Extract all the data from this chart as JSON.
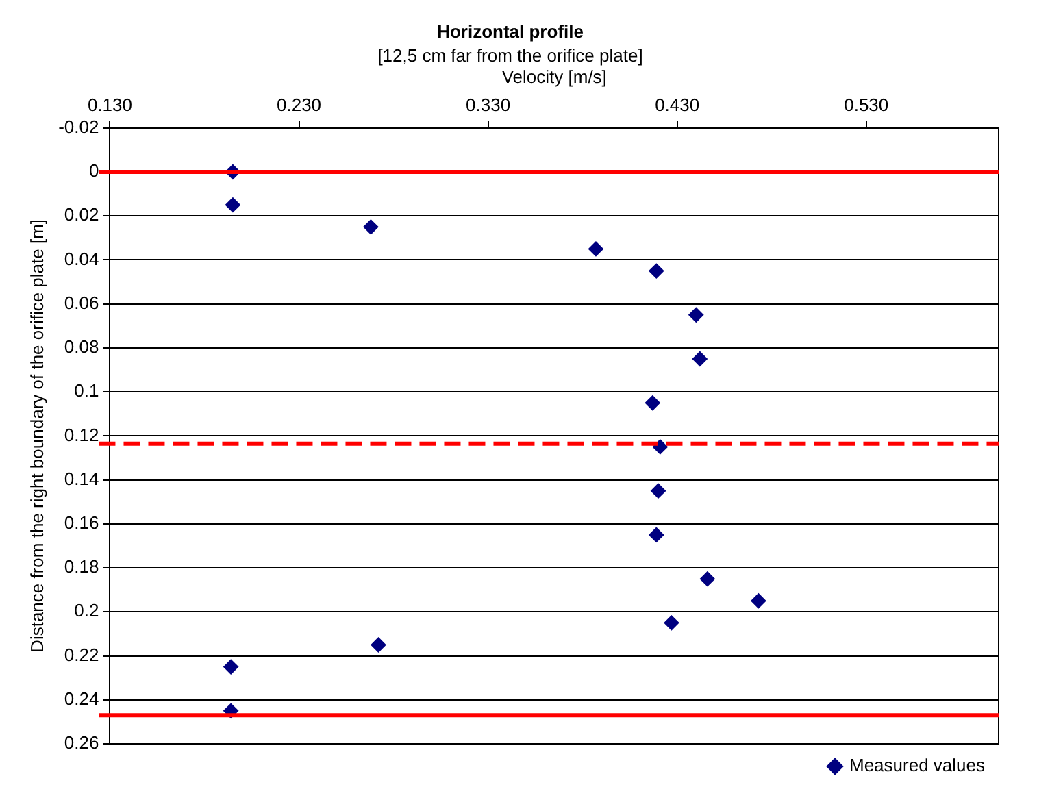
{
  "chart_data": {
    "type": "scatter",
    "title": "Horizontal profile",
    "subtitle": "[12,5 cm far from the orifice plate]",
    "xlabel": "Velocity [m/s]",
    "ylabel": "Distance from the right boundary of the orifice plate [m]",
    "xlim": [
      0.13,
      0.6
    ],
    "xticks": [
      {
        "value": 0.13,
        "label": "0.130"
      },
      {
        "value": 0.23,
        "label": "0.230"
      },
      {
        "value": 0.33,
        "label": "0.330"
      },
      {
        "value": 0.43,
        "label": "0.430"
      },
      {
        "value": 0.53,
        "label": "0.530"
      }
    ],
    "ylim": [
      0.26,
      -0.02
    ],
    "yticks": [
      -0.02,
      0,
      0.02,
      0.04,
      0.06,
      0.08,
      0.1,
      0.12,
      0.14,
      0.16,
      0.18,
      0.2,
      0.22,
      0.24,
      0.26
    ],
    "series": [
      {
        "name": "Measured values",
        "color": "#000080",
        "x": [
          0.195,
          0.195,
          0.268,
          0.387,
          0.419,
          0.44,
          0.442,
          0.417,
          0.421,
          0.42,
          0.419,
          0.446,
          0.473,
          0.427,
          0.272,
          0.194,
          0.194
        ],
        "values": [
          0,
          0.015,
          0.025,
          0.035,
          0.045,
          0.065,
          0.085,
          0.105,
          0.125,
          0.145,
          0.165,
          0.185,
          0.195,
          0.205,
          0.215,
          0.225,
          0.245
        ]
      }
    ],
    "ref_lines": [
      {
        "axis": "y",
        "value": 0,
        "color": "#ff0000",
        "line_style": "solid"
      },
      {
        "axis": "y",
        "value": 0.1235,
        "color": "#ff0000",
        "line_style": "dashed"
      },
      {
        "axis": "y",
        "value": 0.247,
        "color": "#ff0000",
        "line_style": "solid"
      }
    ],
    "grid": "y",
    "legend": "bottom right",
    "marker": "diamond"
  }
}
